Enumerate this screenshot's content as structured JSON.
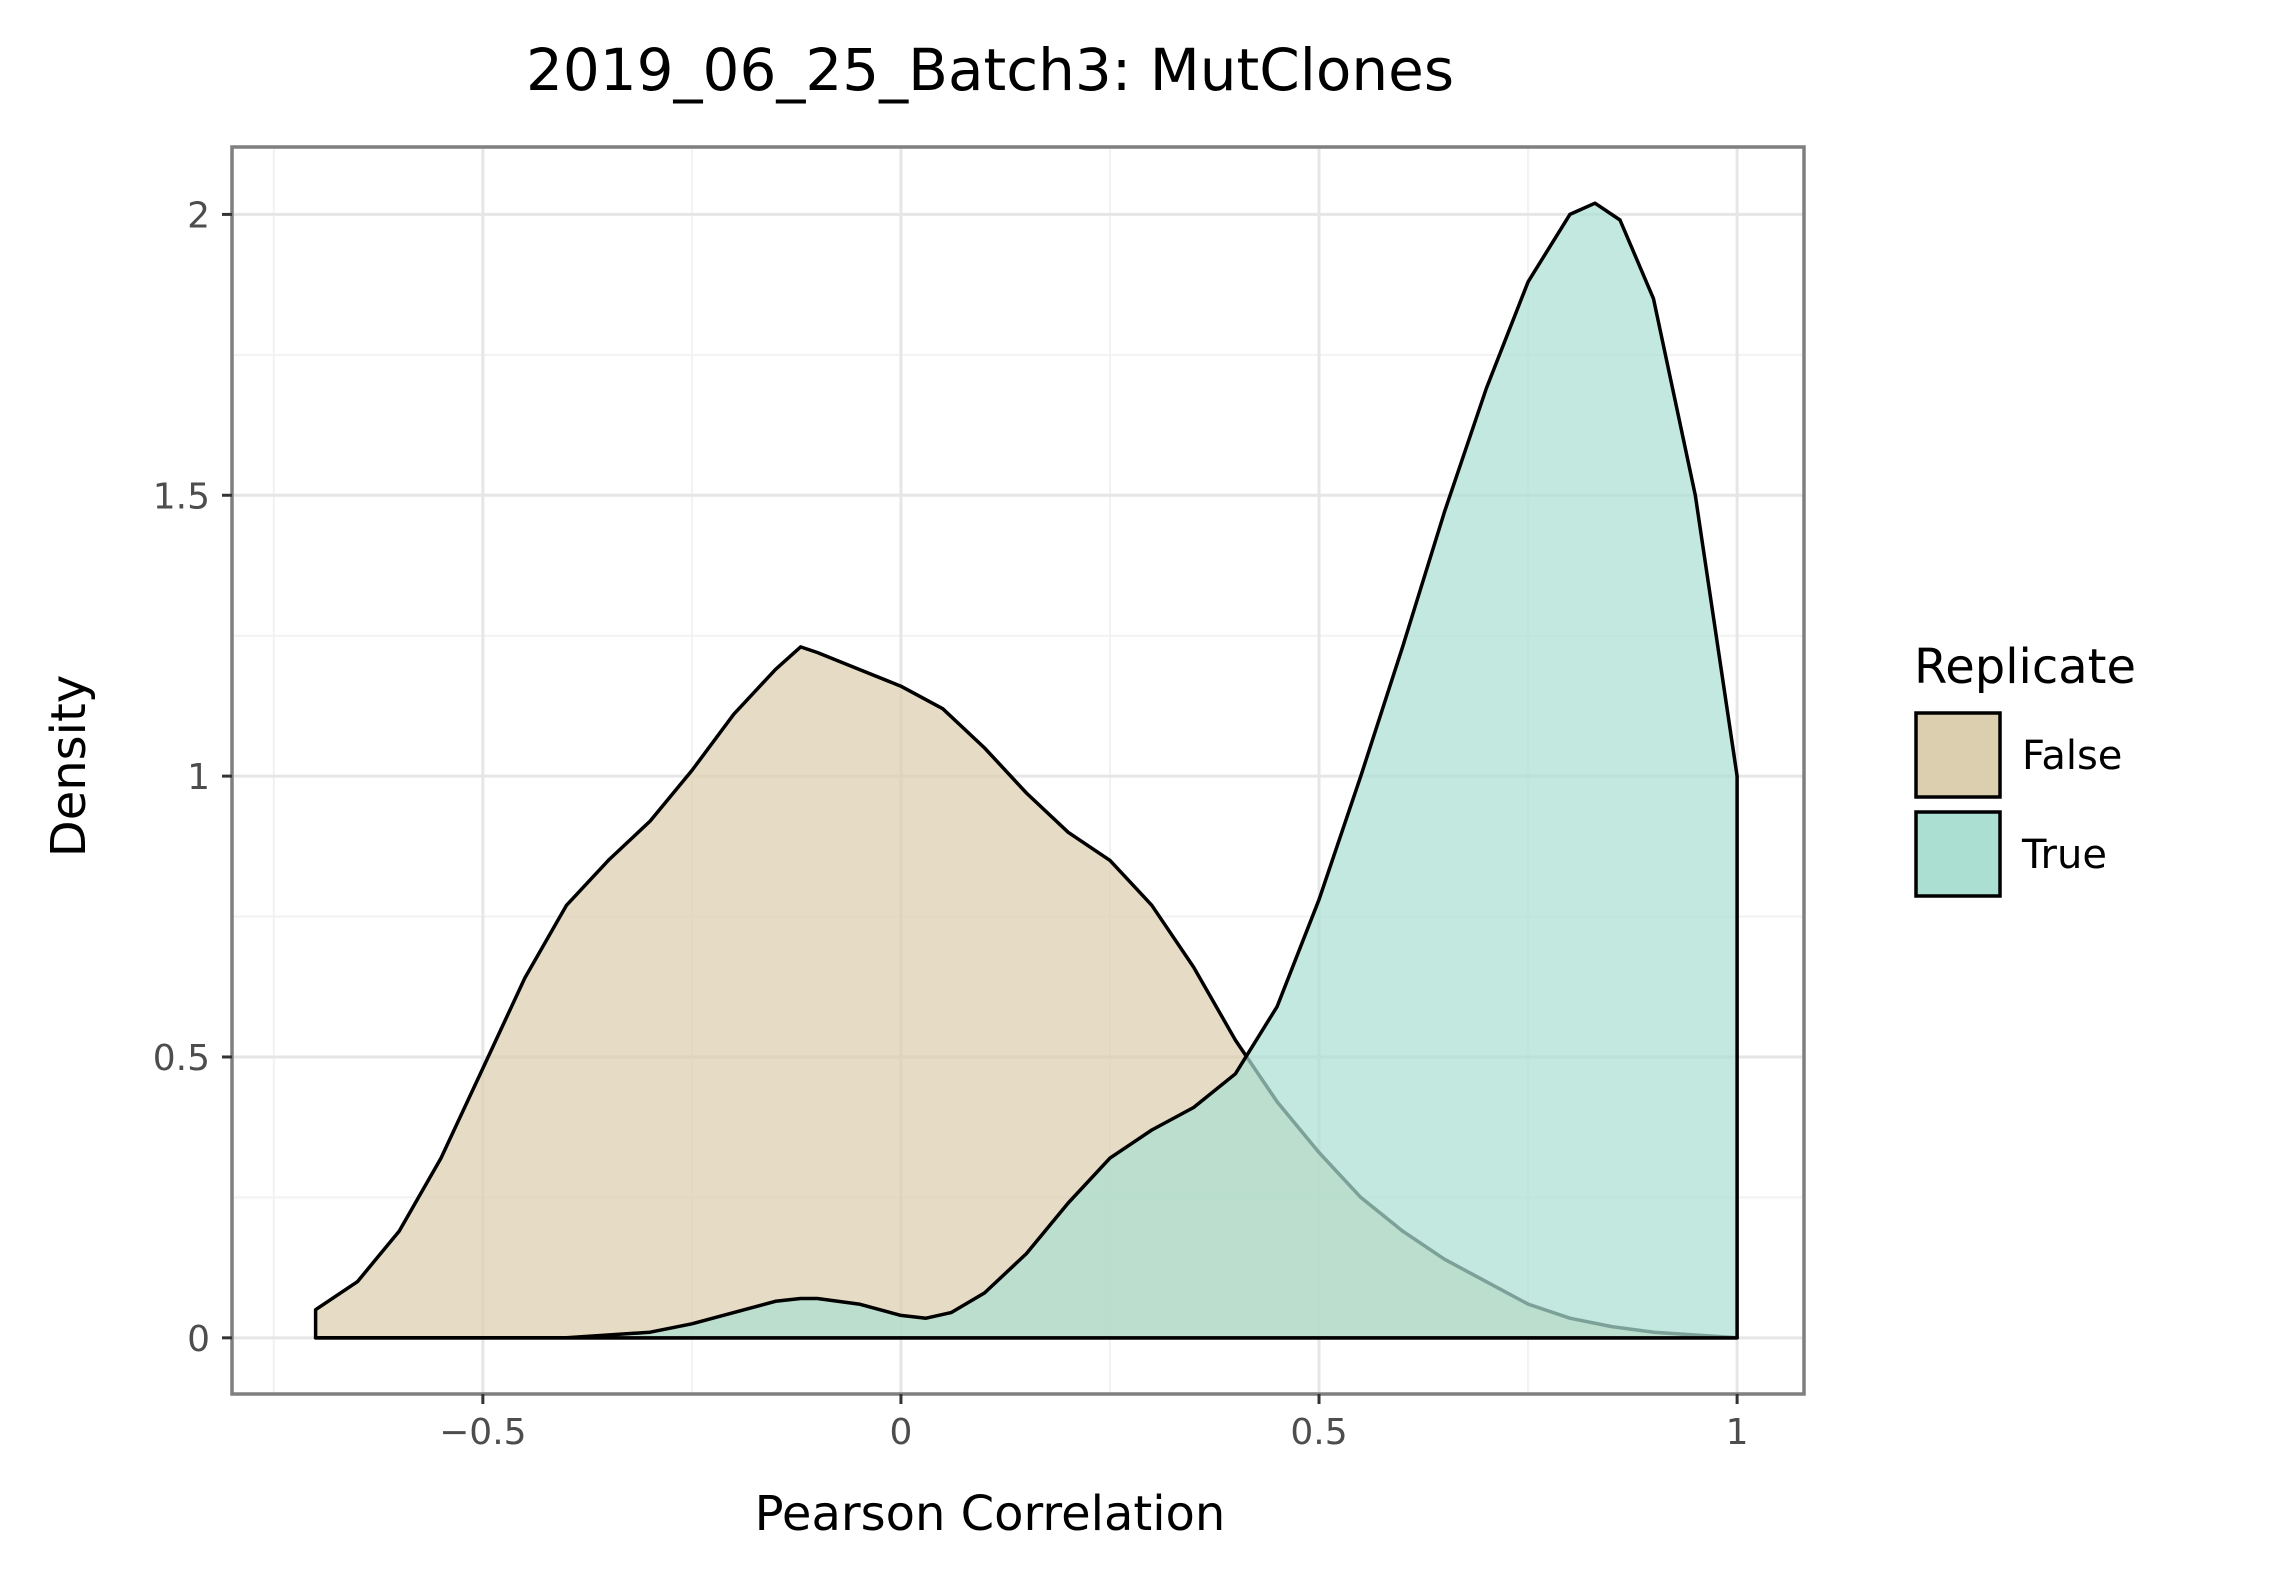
{
  "chart_data": {
    "type": "area",
    "title": "2019_06_25_Batch3: MutClones",
    "xlabel": "Pearson Correlation",
    "ylabel": "Density",
    "xlim": [
      -0.8,
      1.08
    ],
    "ylim": [
      -0.1,
      2.12
    ],
    "x_ticks": [
      -0.5,
      0,
      0.5,
      1
    ],
    "x_tick_labels": [
      "−0.5",
      "0",
      "0.5",
      "1"
    ],
    "y_ticks": [
      0,
      0.5,
      1,
      1.5,
      2
    ],
    "y_tick_labels": [
      "0",
      "0.5",
      "1",
      "1.5",
      "2"
    ],
    "grid": true,
    "legend": {
      "title": "Replicate",
      "position": "right"
    },
    "series": [
      {
        "name": "False",
        "color": "#dccfaf",
        "points": [
          [
            -0.7,
            0.05
          ],
          [
            -0.65,
            0.1
          ],
          [
            -0.6,
            0.19
          ],
          [
            -0.55,
            0.32
          ],
          [
            -0.5,
            0.48
          ],
          [
            -0.45,
            0.64
          ],
          [
            -0.4,
            0.77
          ],
          [
            -0.35,
            0.85
          ],
          [
            -0.3,
            0.92
          ],
          [
            -0.25,
            1.01
          ],
          [
            -0.2,
            1.11
          ],
          [
            -0.15,
            1.19
          ],
          [
            -0.12,
            1.23
          ],
          [
            -0.1,
            1.22
          ],
          [
            -0.05,
            1.19
          ],
          [
            0,
            1.16
          ],
          [
            0.05,
            1.12
          ],
          [
            0.1,
            1.05
          ],
          [
            0.15,
            0.97
          ],
          [
            0.2,
            0.9
          ],
          [
            0.25,
            0.85
          ],
          [
            0.3,
            0.77
          ],
          [
            0.35,
            0.66
          ],
          [
            0.4,
            0.53
          ],
          [
            0.45,
            0.42
          ],
          [
            0.5,
            0.33
          ],
          [
            0.55,
            0.25
          ],
          [
            0.6,
            0.19
          ],
          [
            0.65,
            0.14
          ],
          [
            0.7,
            0.1
          ],
          [
            0.75,
            0.06
          ],
          [
            0.8,
            0.035
          ],
          [
            0.85,
            0.02
          ],
          [
            0.9,
            0.01
          ],
          [
            1.0,
            0.0
          ]
        ]
      },
      {
        "name": "True",
        "color": "#aadfd2",
        "points": [
          [
            -0.7,
            0.0
          ],
          [
            -0.4,
            0.0
          ],
          [
            -0.3,
            0.01
          ],
          [
            -0.25,
            0.025
          ],
          [
            -0.2,
            0.045
          ],
          [
            -0.15,
            0.065
          ],
          [
            -0.12,
            0.07
          ],
          [
            -0.1,
            0.07
          ],
          [
            -0.05,
            0.06
          ],
          [
            0,
            0.04
          ],
          [
            0.03,
            0.035
          ],
          [
            0.06,
            0.045
          ],
          [
            0.1,
            0.08
          ],
          [
            0.15,
            0.15
          ],
          [
            0.2,
            0.24
          ],
          [
            0.25,
            0.32
          ],
          [
            0.3,
            0.37
          ],
          [
            0.35,
            0.41
          ],
          [
            0.4,
            0.47
          ],
          [
            0.45,
            0.59
          ],
          [
            0.5,
            0.78
          ],
          [
            0.55,
            1.0
          ],
          [
            0.6,
            1.23
          ],
          [
            0.65,
            1.47
          ],
          [
            0.7,
            1.69
          ],
          [
            0.75,
            1.88
          ],
          [
            0.8,
            2.0
          ],
          [
            0.83,
            2.02
          ],
          [
            0.86,
            1.99
          ],
          [
            0.9,
            1.85
          ],
          [
            0.95,
            1.5
          ],
          [
            1.0,
            1.0
          ]
        ]
      }
    ]
  }
}
